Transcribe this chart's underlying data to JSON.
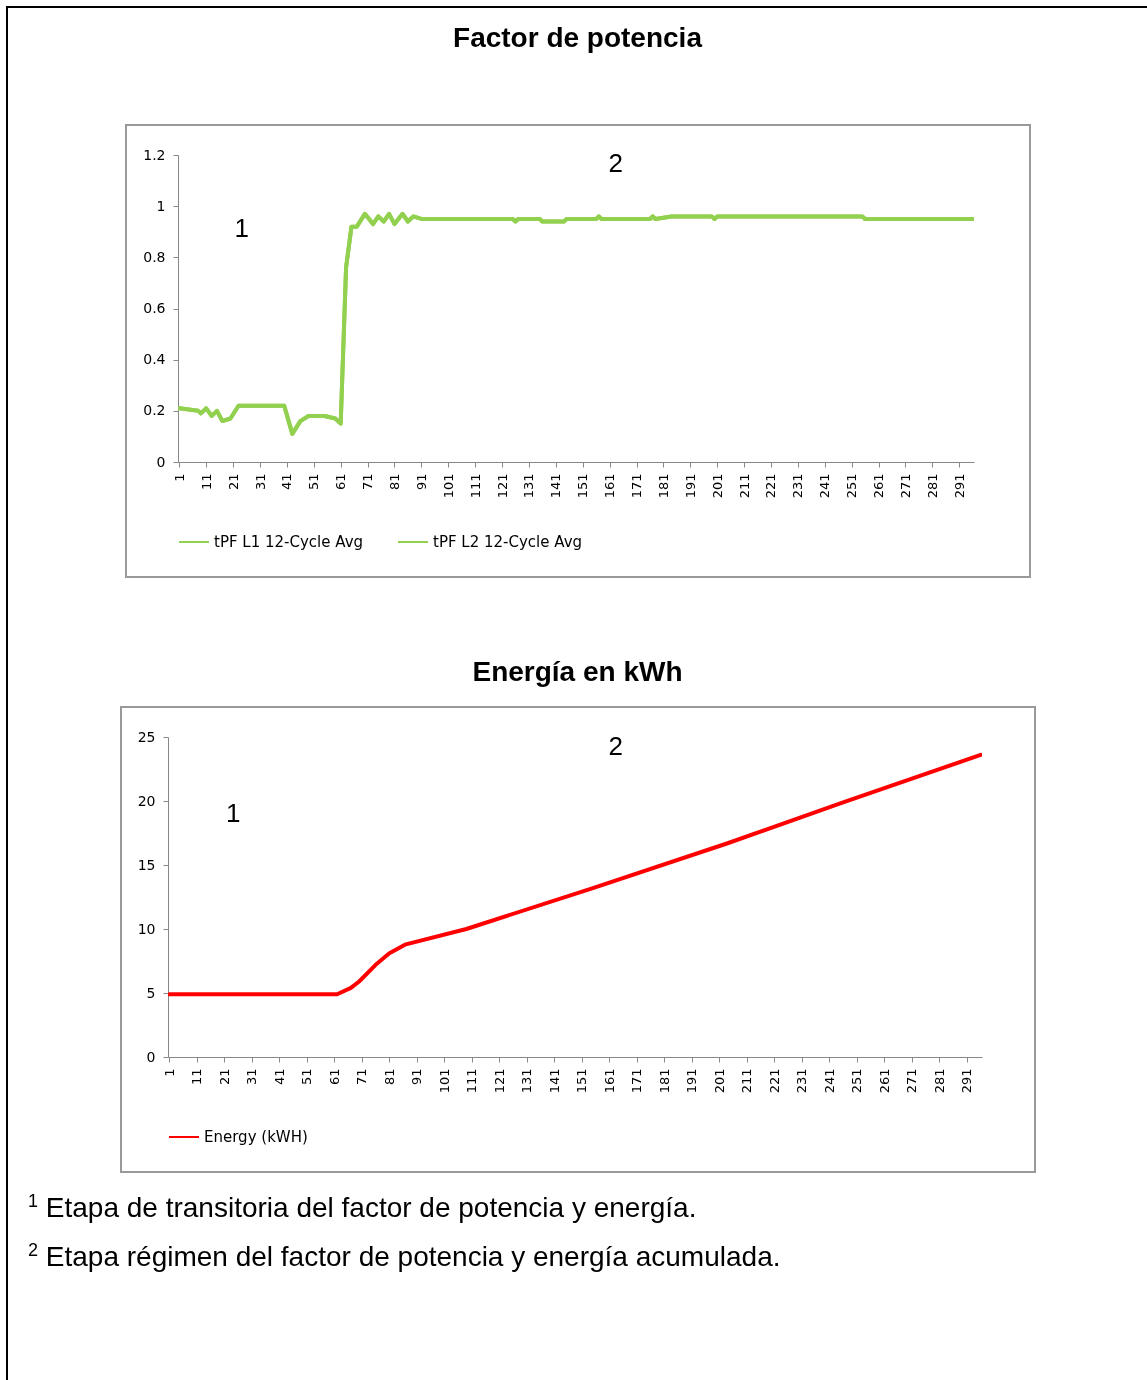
{
  "chart_data": [
    {
      "type": "line",
      "title": "Factor de potencia",
      "x": [
        1,
        8,
        9,
        11,
        13,
        15,
        17,
        20,
        23,
        40,
        43,
        46,
        49,
        55,
        59,
        61,
        63,
        65,
        67,
        70,
        73,
        75,
        77,
        79,
        81,
        84,
        86,
        88,
        91,
        125,
        126,
        127,
        135,
        136,
        144,
        145,
        156,
        157,
        158,
        176,
        177,
        178,
        184,
        199,
        200,
        201,
        255,
        256,
        296
      ],
      "series": [
        {
          "name": "tPF L1 12-Cycle Avg",
          "color": "#92d050",
          "values": [
            0.21,
            0.2,
            0.19,
            0.21,
            0.18,
            0.2,
            0.16,
            0.17,
            0.22,
            0.22,
            0.11,
            0.16,
            0.18,
            0.18,
            0.17,
            0.15,
            0.76,
            0.92,
            0.92,
            0.97,
            0.93,
            0.96,
            0.94,
            0.97,
            0.93,
            0.97,
            0.94,
            0.96,
            0.95,
            0.95,
            0.94,
            0.95,
            0.95,
            0.94,
            0.94,
            0.95,
            0.95,
            0.96,
            0.95,
            0.95,
            0.96,
            0.95,
            0.96,
            0.96,
            0.95,
            0.96,
            0.96,
            0.95,
            0.95
          ]
        },
        {
          "name": "tPF L2 12-Cycle Avg",
          "color": "#92d050",
          "values": [
            0.21,
            0.2,
            0.19,
            0.21,
            0.18,
            0.2,
            0.16,
            0.17,
            0.22,
            0.22,
            0.11,
            0.16,
            0.18,
            0.18,
            0.17,
            0.15,
            0.76,
            0.92,
            0.92,
            0.97,
            0.93,
            0.96,
            0.94,
            0.97,
            0.93,
            0.97,
            0.94,
            0.96,
            0.95,
            0.95,
            0.94,
            0.95,
            0.95,
            0.94,
            0.94,
            0.95,
            0.95,
            0.96,
            0.95,
            0.95,
            0.96,
            0.95,
            0.96,
            0.96,
            0.95,
            0.96,
            0.96,
            0.95,
            0.95
          ]
        }
      ],
      "xlim": [
        0.5,
        296.5
      ],
      "xticks": [
        1,
        11,
        21,
        31,
        41,
        51,
        61,
        71,
        81,
        91,
        101,
        111,
        121,
        131,
        141,
        151,
        161,
        171,
        181,
        191,
        201,
        211,
        221,
        231,
        241,
        251,
        261,
        271,
        281,
        291
      ],
      "ylim": [
        0,
        1.2
      ],
      "yticks": [
        0,
        0.2,
        0.4,
        0.6,
        0.8,
        1,
        1.2
      ],
      "grid": false,
      "legend": "bottom",
      "line_style": "solid",
      "marker": "none",
      "annotations": [
        "1",
        "2"
      ]
    },
    {
      "type": "line",
      "title": "Energía en kWh",
      "x": [
        1,
        62,
        67,
        70,
        76,
        81,
        87,
        109,
        155,
        204,
        246,
        296
      ],
      "series": [
        {
          "name": "Energy (kWH)",
          "color": "#ff0000",
          "values": [
            4.9,
            4.9,
            5.4,
            5.9,
            7.2,
            8.1,
            8.8,
            10,
            13.2,
            16.7,
            19.9,
            23.6
          ]
        }
      ],
      "xlim": [
        0.5,
        296.5
      ],
      "xticks": [
        1,
        11,
        21,
        31,
        41,
        51,
        61,
        71,
        81,
        91,
        101,
        111,
        121,
        131,
        141,
        151,
        161,
        171,
        181,
        191,
        201,
        211,
        221,
        231,
        241,
        251,
        261,
        271,
        281,
        291
      ],
      "ylim": [
        0,
        25
      ],
      "yticks": [
        0,
        5,
        10,
        15,
        20,
        25
      ],
      "grid": false,
      "legend": "bottom",
      "line_style": "solid",
      "marker": "none",
      "annotations": [
        "1",
        "2",
        "$^{1}$ Etapa de transitoria del factor de potencia y energía.",
        "$^{2}$ Etapa régimen del factor de potencia y energía acumulada."
      ]
    }
  ]
}
